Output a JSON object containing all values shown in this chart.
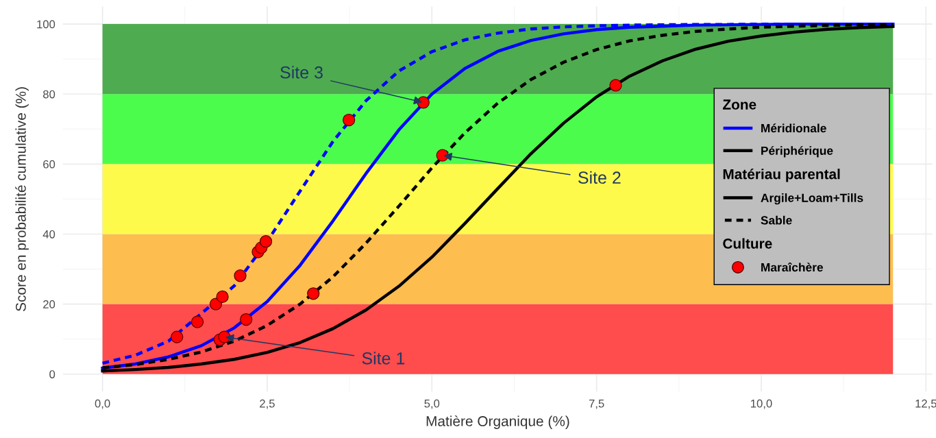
{
  "chart_data": {
    "type": "line",
    "xlabel": "Matière Organique (%)",
    "ylabel": "Score en probabilité cumulative (%)",
    "x": [
      0,
      0.5,
      1,
      1.5,
      2,
      2.5,
      3,
      3.5,
      4,
      4.5,
      5,
      5.5,
      6,
      6.5,
      7,
      7.5,
      8,
      8.5,
      9,
      9.5,
      10,
      10.5,
      11,
      11.5,
      12
    ],
    "series": [
      {
        "color": "#0000ff",
        "line_style": "dashed",
        "x": [
          0,
          0.5,
          1,
          2,
          2.5,
          3,
          3.5,
          4,
          4.5,
          5,
          5.5,
          6,
          6.5,
          7,
          7.5,
          8,
          8.5,
          9,
          9.5,
          10,
          10.5,
          11,
          11.5,
          12
        ],
        "values": [
          3.1,
          5.4,
          9.4,
          25.2,
          37.9,
          52.3,
          66.5,
          78.1,
          86.6,
          92.1,
          95.5,
          97.4,
          98.6,
          99.2,
          99.5,
          99.7,
          99.8,
          99.9,
          99.9,
          100,
          100,
          100,
          100,
          100
        ]
      },
      {
        "color": "#0000ff",
        "line_style": "solid",
        "values": [
          1.7,
          2.9,
          4.9,
          8.1,
          13.2,
          20.7,
          31.1,
          43.8,
          57.3,
          69.8,
          80.0,
          87.3,
          92.2,
          95.3,
          97.2,
          98.4,
          99.1,
          99.4,
          99.7,
          99.8,
          99.9,
          100,
          100,
          100,
          100
        ]
      },
      {
        "color": "#000000",
        "line_style": "dashed",
        "values": [
          1.8,
          2.7,
          4.2,
          6.3,
          9.4,
          13.9,
          20.0,
          27.8,
          37.4,
          48.0,
          58.9,
          68.9,
          77.4,
          84.1,
          89.1,
          92.7,
          95.2,
          96.8,
          97.9,
          98.6,
          99.1,
          99.4,
          99.6,
          99.8,
          99.8
        ]
      },
      {
        "color": "#000000",
        "line_style": "solid",
        "values": [
          0.9,
          1.3,
          1.9,
          2.9,
          4.2,
          6.2,
          9.0,
          13.0,
          18.3,
          25.1,
          33.4,
          43.0,
          53.0,
          62.9,
          71.7,
          79.2,
          85.1,
          89.5,
          92.8,
          95.1,
          96.6,
          97.7,
          98.5,
          99.0,
          99.3
        ]
      },
      {
        "type": "scatter",
        "name": "Maraîchère",
        "color": "#ff0000",
        "marker": "circle",
        "x": [
          1.13,
          1.44,
          1.72,
          1.82,
          2.09,
          2.36,
          2.41,
          2.48,
          3.74,
          1.78,
          1.85,
          2.18,
          3.2,
          4.87,
          5.16,
          7.79
        ],
        "values": [
          10.6,
          14.9,
          20.0,
          22.1,
          28.1,
          34.9,
          36.1,
          37.9,
          72.6,
          9.8,
          10.6,
          15.6,
          23.0,
          77.6,
          62.5,
          82.5
        ]
      },
      {
        "name": "Méridionale",
        "color": "#0000ff",
        "line_style": "solid",
        "values": [
          null,
          null,
          null,
          null,
          null,
          null,
          null,
          null,
          null,
          null,
          null,
          null,
          null,
          null,
          null,
          null,
          null,
          null,
          null,
          null,
          null,
          null,
          null,
          null,
          null
        ]
      },
      {
        "name": "Périphérique",
        "color": "#000000",
        "line_style": "solid",
        "values": [
          null,
          null,
          null,
          null,
          null,
          null,
          null,
          null,
          null,
          null,
          null,
          null,
          null,
          null,
          null,
          null,
          null,
          null,
          null,
          null,
          null,
          null,
          null,
          null,
          null
        ]
      },
      {
        "name": "Argile+Loam+Tills",
        "color": "#000000",
        "line_style": "solid",
        "values": [
          null,
          null,
          null,
          null,
          null,
          null,
          null,
          null,
          null,
          null,
          null,
          null,
          null,
          null,
          null,
          null,
          null,
          null,
          null,
          null,
          null,
          null,
          null,
          null,
          null
        ]
      },
      {
        "name": "Sable",
        "color": "#000000",
        "line_style": "dashed",
        "values": [
          null,
          null,
          null,
          null,
          null,
          null,
          null,
          null,
          null,
          null,
          null,
          null,
          null,
          null,
          null,
          null,
          null,
          null,
          null,
          null,
          null,
          null,
          null,
          null,
          null
        ]
      }
    ],
    "legend_title": [
      "Zone",
      "Matériau parental",
      "Culture"
    ],
    "bands": [
      {
        "axis": "y",
        "from": 0,
        "to": 20,
        "color": "#ff4c4c"
      },
      {
        "axis": "y",
        "from": 20,
        "to": 40,
        "color": "#fdbd4f"
      },
      {
        "axis": "y",
        "from": 40,
        "to": 60,
        "color": "#fefa4b"
      },
      {
        "axis": "y",
        "from": 60,
        "to": 80,
        "color": "#4cfc4c"
      },
      {
        "axis": "y",
        "from": 80,
        "to": 100,
        "color": "#4fab4f"
      }
    ],
    "annotations": [
      {
        "text": "Site 1",
        "x": 1.85,
        "y": 10.6
      },
      {
        "text": "Site 2",
        "x": 5.16,
        "y": 62.5
      },
      {
        "text": "Site 3",
        "x": 4.87,
        "y": 77.6
      }
    ],
    "legend": "right",
    "xlim": [
      -0.6,
      12.6
    ],
    "xticks": [
      {
        "value": 0,
        "label": "0,0"
      },
      {
        "value": 2.5,
        "label": "2,5"
      },
      {
        "value": 5,
        "label": "5,0"
      },
      {
        "value": 7.5,
        "label": "7,5"
      },
      {
        "value": 10,
        "label": "10,0"
      },
      {
        "value": 12.5,
        "label": "12,5"
      }
    ],
    "ylim": [
      -5,
      105
    ],
    "yticks": [
      0,
      20,
      40,
      60,
      80,
      100
    ],
    "grid": true
  }
}
